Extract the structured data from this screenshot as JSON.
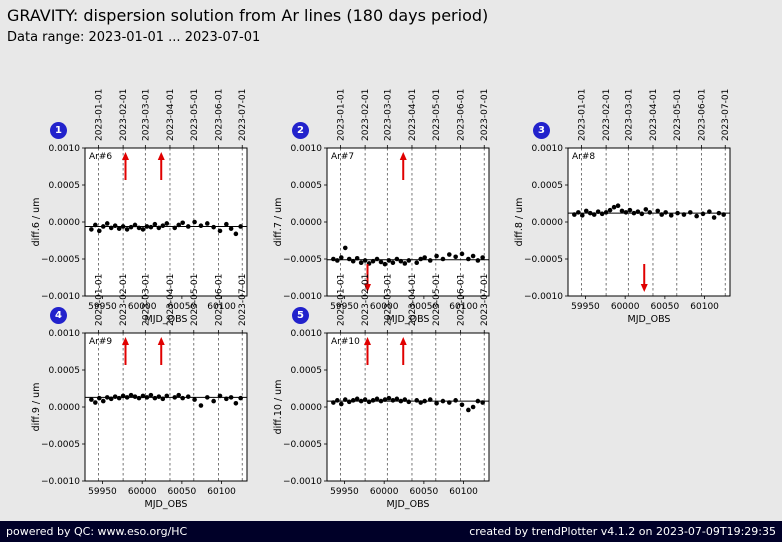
{
  "header": {
    "title": "GRAVITY: dispersion solution from Ar lines (180 days period)",
    "subtitle": "Data range: 2023-01-01 ... 2023-07-01"
  },
  "footer": {
    "left": "powered by QC: www.eso.org/HC",
    "right": "created by trendPlotter v4.1.2 on 2023-07-09T19:29:35"
  },
  "months": [
    {
      "label": "2023-01-01",
      "mjd": 59945
    },
    {
      "label": "2023-02-01",
      "mjd": 59976
    },
    {
      "label": "2023-03-01",
      "mjd": 60004
    },
    {
      "label": "2023-04-01",
      "mjd": 60035
    },
    {
      "label": "2023-05-01",
      "mjd": 60065
    },
    {
      "label": "2023-06-01",
      "mjd": 60096
    },
    {
      "label": "2023-07-01",
      "mjd": 60126
    }
  ],
  "accent_colors": {
    "badge_blue": "#2222cc",
    "arrow_red": "#e00000",
    "plot_bg": "#ffffff",
    "page_bg": "#e8e8e8",
    "footer_bg": "#000028"
  },
  "chart_data": [
    {
      "type": "scatter",
      "badge": "1",
      "label": "Ar#6",
      "ylabel": "diff.6 / um",
      "xlabel": "MJD_OBS",
      "xlim": [
        59928,
        60132
      ],
      "ylim": [
        -0.001,
        0.001
      ],
      "xticks": [
        59950,
        60000,
        60050,
        60100
      ],
      "yticks": [
        -0.001,
        -0.0005,
        0,
        0.0005,
        0.001
      ],
      "baseline": -6e-05,
      "arrows": [
        {
          "mjd": 59979,
          "dir": "up"
        },
        {
          "mjd": 60024,
          "dir": "up"
        }
      ],
      "x": [
        59936,
        59941,
        59946,
        59951,
        59956,
        59961,
        59966,
        59971,
        59976,
        59981,
        59986,
        59991,
        59996,
        60001,
        60006,
        60011,
        60016,
        60021,
        60026,
        60031,
        60041,
        60046,
        60051,
        60058,
        60066,
        60074,
        60082,
        60090,
        60098,
        60106,
        60112,
        60118,
        60124
      ],
      "y": [
        -0.0001,
        -4e-05,
        -0.00012,
        -6e-05,
        -2e-05,
        -8e-05,
        -5e-05,
        -9e-05,
        -6e-05,
        -0.0001,
        -7e-05,
        -4e-05,
        -8e-05,
        -0.0001,
        -6e-05,
        -7e-05,
        -3e-05,
        -8e-05,
        -5e-05,
        -2e-05,
        -8e-05,
        -4e-05,
        -1e-05,
        -6e-05,
        0.0,
        -5e-05,
        -2e-05,
        -7e-05,
        -0.00012,
        -3e-05,
        -9e-05,
        -0.00016,
        -6e-05
      ]
    },
    {
      "type": "scatter",
      "badge": "2",
      "label": "Ar#7",
      "ylabel": "diff.7 / um",
      "xlabel": "MJD_OBS",
      "xlim": [
        59928,
        60132
      ],
      "ylim": [
        -0.001,
        0.001
      ],
      "xticks": [
        59950,
        60000,
        60050,
        60100
      ],
      "yticks": [
        -0.001,
        -0.0005,
        0,
        0.0005,
        0.001
      ],
      "baseline": -0.00051,
      "arrows": [
        {
          "mjd": 59979,
          "dir": "down"
        },
        {
          "mjd": 60024,
          "dir": "up"
        }
      ],
      "x": [
        59936,
        59941,
        59946,
        59951,
        59956,
        59961,
        59966,
        59971,
        59976,
        59981,
        59986,
        59991,
        59996,
        60001,
        60006,
        60011,
        60016,
        60021,
        60026,
        60031,
        60041,
        60046,
        60051,
        60058,
        60066,
        60074,
        60082,
        60090,
        60098,
        60106,
        60112,
        60118,
        60124
      ],
      "y": [
        -0.0005,
        -0.00052,
        -0.00048,
        -0.00035,
        -0.0005,
        -0.00053,
        -0.00049,
        -0.00055,
        -0.00052,
        -0.00056,
        -0.00053,
        -0.0005,
        -0.00054,
        -0.00057,
        -0.00052,
        -0.00055,
        -0.0005,
        -0.00053,
        -0.00056,
        -0.00052,
        -0.00055,
        -0.0005,
        -0.00048,
        -0.00052,
        -0.00046,
        -0.0005,
        -0.00044,
        -0.00047,
        -0.00043,
        -0.0005,
        -0.00046,
        -0.00052,
        -0.00048
      ]
    },
    {
      "type": "scatter",
      "badge": "3",
      "label": "Ar#8",
      "ylabel": "diff.8 / um",
      "xlabel": "MJD_OBS",
      "xlim": [
        59928,
        60132
      ],
      "ylim": [
        -0.001,
        0.001
      ],
      "xticks": [
        59950,
        60000,
        60050,
        60100
      ],
      "yticks": [
        -0.001,
        -0.0005,
        0,
        0.0005,
        0.001
      ],
      "baseline": 0.00012,
      "arrows": [
        {
          "mjd": 60024,
          "dir": "down"
        }
      ],
      "x": [
        59936,
        59941,
        59946,
        59951,
        59956,
        59961,
        59966,
        59971,
        59976,
        59981,
        59986,
        59991,
        59996,
        60001,
        60006,
        60011,
        60016,
        60021,
        60026,
        60031,
        60041,
        60046,
        60051,
        60058,
        60066,
        60074,
        60082,
        60090,
        60098,
        60106,
        60112,
        60118,
        60124
      ],
      "y": [
        0.0001,
        0.00013,
        9e-05,
        0.00015,
        0.00012,
        0.0001,
        0.00014,
        0.00011,
        0.00013,
        0.00016,
        0.0002,
        0.00022,
        0.00015,
        0.00013,
        0.00016,
        0.00012,
        0.00014,
        0.00011,
        0.00017,
        0.00013,
        0.00015,
        0.0001,
        0.00013,
        9e-05,
        0.00012,
        0.0001,
        0.00013,
        8e-05,
        0.00011,
        0.00014,
        6e-05,
        0.00012,
        0.0001
      ]
    },
    {
      "type": "scatter",
      "badge": "4",
      "label": "Ar#9",
      "ylabel": "diff.9 / um",
      "xlabel": "MJD_OBS",
      "xlim": [
        59928,
        60132
      ],
      "ylim": [
        -0.001,
        0.001
      ],
      "xticks": [
        59950,
        60000,
        60050,
        60100
      ],
      "yticks": [
        -0.001,
        -0.0005,
        0,
        0.0005,
        0.001
      ],
      "baseline": 0.00013,
      "arrows": [
        {
          "mjd": 59979,
          "dir": "up"
        },
        {
          "mjd": 60024,
          "dir": "up"
        }
      ],
      "x": [
        59936,
        59941,
        59946,
        59951,
        59956,
        59961,
        59966,
        59971,
        59976,
        59981,
        59986,
        59991,
        59996,
        60001,
        60006,
        60011,
        60016,
        60021,
        60026,
        60031,
        60041,
        60046,
        60051,
        60058,
        60066,
        60074,
        60082,
        60090,
        60098,
        60106,
        60112,
        60118,
        60124
      ],
      "y": [
        0.0001,
        6e-05,
        0.00012,
        8e-05,
        0.00013,
        0.00011,
        0.00014,
        0.00012,
        0.00015,
        0.00013,
        0.00016,
        0.00014,
        0.00012,
        0.00015,
        0.00013,
        0.00016,
        0.00012,
        0.00014,
        0.00011,
        0.00015,
        0.00013,
        0.00016,
        0.00012,
        0.00014,
        0.0001,
        2e-05,
        0.00013,
        8e-05,
        0.00015,
        0.00011,
        0.00013,
        5e-05,
        0.00012
      ]
    },
    {
      "type": "scatter",
      "badge": "5",
      "label": "Ar#10",
      "ylabel": "diff.10 / um",
      "xlabel": "MJD_OBS",
      "xlim": [
        59928,
        60132
      ],
      "ylim": [
        -0.001,
        0.001
      ],
      "xticks": [
        59950,
        60000,
        60050,
        60100
      ],
      "yticks": [
        -0.001,
        -0.0005,
        0,
        0.0005,
        0.001
      ],
      "baseline": 8e-05,
      "arrows": [
        {
          "mjd": 59979,
          "dir": "up"
        },
        {
          "mjd": 60024,
          "dir": "up"
        }
      ],
      "x": [
        59936,
        59941,
        59946,
        59951,
        59956,
        59961,
        59966,
        59971,
        59976,
        59981,
        59986,
        59991,
        59996,
        60001,
        60006,
        60011,
        60016,
        60021,
        60026,
        60031,
        60041,
        60046,
        60051,
        60058,
        60066,
        60074,
        60082,
        60090,
        60098,
        60106,
        60112,
        60118,
        60124
      ],
      "y": [
        6e-05,
        9e-05,
        4e-05,
        0.0001,
        7e-05,
        9e-05,
        0.00011,
        8e-05,
        0.0001,
        7e-05,
        9e-05,
        0.00011,
        8e-05,
        0.0001,
        0.00012,
        9e-05,
        0.00011,
        8e-05,
        0.0001,
        7e-05,
        9e-05,
        6e-05,
        8e-05,
        0.0001,
        5e-05,
        8e-05,
        6e-05,
        9e-05,
        3e-05,
        -4e-05,
        0.0,
        8e-05,
        6e-05
      ]
    }
  ]
}
